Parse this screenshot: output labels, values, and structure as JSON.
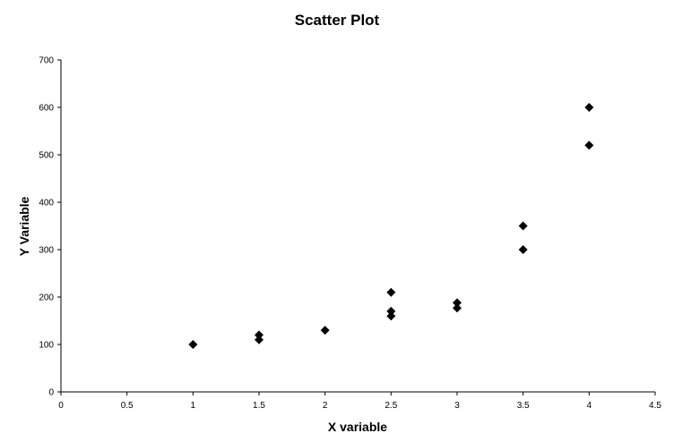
{
  "chart_data": {
    "type": "scatter",
    "title": "Scatter Plot",
    "xlabel": "X variable",
    "ylabel": "Y Variable",
    "xlim": [
      0,
      4.5
    ],
    "ylim": [
      0,
      700
    ],
    "xticks": [
      "0",
      "0.5",
      "1",
      "1.5",
      "2",
      "2.5",
      "3",
      "3.5",
      "4",
      "4.5"
    ],
    "yticks": [
      "0",
      "100",
      "200",
      "300",
      "400",
      "500",
      "600",
      "700"
    ],
    "grid": false,
    "legend": "none",
    "marker": "diamond",
    "marker_color": "#000000",
    "series": [
      {
        "points": [
          {
            "x": 1,
            "y": 100
          },
          {
            "x": 1.5,
            "y": 120
          },
          {
            "x": 1.5,
            "y": 110
          },
          {
            "x": 2,
            "y": 130
          },
          {
            "x": 2.5,
            "y": 210
          },
          {
            "x": 2.5,
            "y": 170
          },
          {
            "x": 2.5,
            "y": 160
          },
          {
            "x": 3,
            "y": 188
          },
          {
            "x": 3,
            "y": 177
          },
          {
            "x": 3.5,
            "y": 350
          },
          {
            "x": 3.5,
            "y": 300
          },
          {
            "x": 4,
            "y": 600
          },
          {
            "x": 4,
            "y": 520
          }
        ]
      }
    ]
  }
}
